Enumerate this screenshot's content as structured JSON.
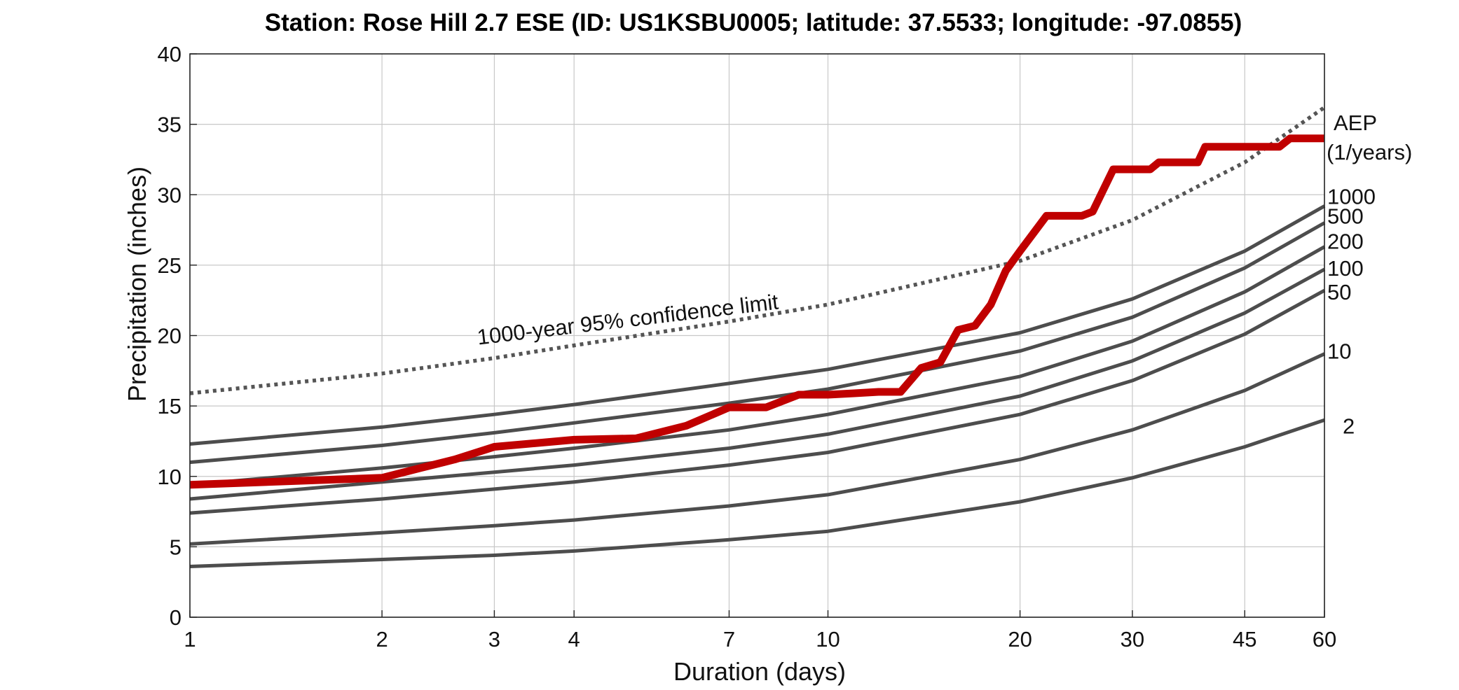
{
  "chart_data": {
    "type": "line",
    "title": "Station: Rose Hill 2.7 ESE (ID: US1KSBU0005; latitude: 37.5533; longitude: -97.0855)",
    "xlabel": "Duration (days)",
    "ylabel": "Precipitation (inches)",
    "xscale": "log",
    "xlim": [
      1,
      60
    ],
    "ylim": [
      0,
      40
    ],
    "grid": true,
    "x_ticks": [
      1,
      2,
      3,
      4,
      7,
      10,
      20,
      30,
      45,
      60
    ],
    "x_tick_labels": [
      "1",
      "2",
      "3",
      "4",
      "7",
      "10",
      "20",
      "30",
      "45",
      "60"
    ],
    "y_ticks": [
      0,
      5,
      10,
      15,
      20,
      25,
      30,
      35,
      40
    ],
    "y_tick_labels": [
      "0",
      "5",
      "10",
      "15",
      "20",
      "25",
      "30",
      "35",
      "40"
    ],
    "x": [
      1,
      2,
      3,
      4,
      7,
      10,
      20,
      30,
      45,
      60
    ],
    "aep_legend": {
      "line1": "AEP",
      "line2": "(1/years)"
    },
    "colors": {
      "aep_curve": "#4d4d4d",
      "observed": "#c00000",
      "confidence": "#555555",
      "grid": "#c8c8c8"
    },
    "series": [
      {
        "label": "1000",
        "values": [
          12.3,
          13.5,
          14.4,
          15.1,
          16.6,
          17.6,
          20.2,
          22.6,
          26.0,
          29.2
        ]
      },
      {
        "label": "500",
        "values": [
          11.0,
          12.2,
          13.1,
          13.8,
          15.2,
          16.2,
          18.9,
          21.3,
          24.8,
          28.0
        ]
      },
      {
        "label": "200",
        "values": [
          9.4,
          10.6,
          11.4,
          12.0,
          13.3,
          14.4,
          17.1,
          19.6,
          23.1,
          26.3
        ]
      },
      {
        "label": "100",
        "values": [
          8.4,
          9.6,
          10.3,
          10.8,
          12.0,
          13.0,
          15.7,
          18.2,
          21.6,
          24.7
        ]
      },
      {
        "label": "50",
        "values": [
          7.4,
          8.4,
          9.1,
          9.6,
          10.8,
          11.7,
          14.4,
          16.8,
          20.1,
          23.2
        ]
      },
      {
        "label": "10",
        "values": [
          5.2,
          6.0,
          6.5,
          6.9,
          7.9,
          8.7,
          11.2,
          13.3,
          16.1,
          18.7
        ]
      },
      {
        "label": "2",
        "values": [
          3.6,
          4.1,
          4.4,
          4.7,
          5.5,
          6.1,
          8.2,
          9.9,
          12.1,
          14.0
        ]
      }
    ],
    "confidence_limit": {
      "label": "1000-year 95% confidence limit",
      "values": [
        15.9,
        17.3,
        18.4,
        19.3,
        21.0,
        22.2,
        25.3,
        28.2,
        32.3,
        36.2
      ]
    },
    "observed": {
      "x": [
        1,
        2,
        2.3,
        2.6,
        3,
        4,
        5,
        6,
        7,
        8,
        9,
        10,
        11,
        12,
        13,
        14,
        15,
        16,
        17,
        18,
        19,
        20,
        22,
        25,
        26,
        28,
        32,
        33,
        38,
        39,
        51,
        53,
        60
      ],
      "values": [
        9.4,
        9.9,
        10.6,
        11.2,
        12.1,
        12.6,
        12.7,
        13.6,
        14.9,
        14.9,
        15.8,
        15.8,
        15.9,
        16.0,
        16.0,
        17.7,
        18.1,
        20.4,
        20.7,
        22.2,
        24.6,
        26.0,
        28.5,
        28.5,
        28.8,
        31.8,
        31.8,
        32.3,
        32.3,
        33.4,
        33.4,
        34.0,
        34.0
      ]
    }
  }
}
